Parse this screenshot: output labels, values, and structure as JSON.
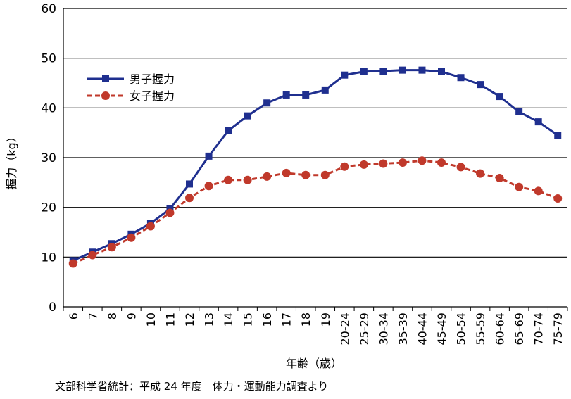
{
  "chart_data": {
    "type": "line",
    "xlabel": "年齢（歳）",
    "ylabel": "握力（kg）",
    "ylim": [
      0,
      60
    ],
    "yticks": [
      0,
      10,
      20,
      30,
      40,
      50,
      60
    ],
    "grid": true,
    "legend_position": "top-left",
    "categories": [
      "6",
      "7",
      "8",
      "9",
      "10",
      "11",
      "12",
      "13",
      "14",
      "15",
      "16",
      "17",
      "18",
      "19",
      "20-24",
      "25-29",
      "30-34",
      "35-39",
      "40-44",
      "45-49",
      "50-54",
      "55-59",
      "60-64",
      "65-69",
      "70-74",
      "75-79"
    ],
    "series": [
      {
        "name": "男子握力",
        "color": "#1f2f8f",
        "marker": "square",
        "line_style": "solid",
        "values": [
          9.3,
          11.0,
          12.7,
          14.6,
          16.8,
          19.7,
          24.7,
          30.3,
          35.4,
          38.4,
          41.0,
          42.6,
          42.6,
          43.6,
          46.6,
          47.3,
          47.4,
          47.6,
          47.6,
          47.3,
          46.1,
          44.7,
          42.3,
          39.2,
          37.2,
          34.5
        ]
      },
      {
        "name": "女子握力",
        "color": "#c0392b",
        "marker": "circle",
        "line_style": "dashed",
        "values": [
          8.7,
          10.4,
          12.0,
          13.9,
          16.2,
          18.9,
          21.9,
          24.3,
          25.5,
          25.5,
          26.2,
          26.9,
          26.5,
          26.5,
          28.2,
          28.6,
          28.8,
          29.0,
          29.4,
          29.0,
          28.1,
          26.8,
          25.9,
          24.1,
          23.3,
          21.8
        ]
      }
    ]
  },
  "source": "文部科学省統計：平成 24 年度　体力・運動能力調査より"
}
